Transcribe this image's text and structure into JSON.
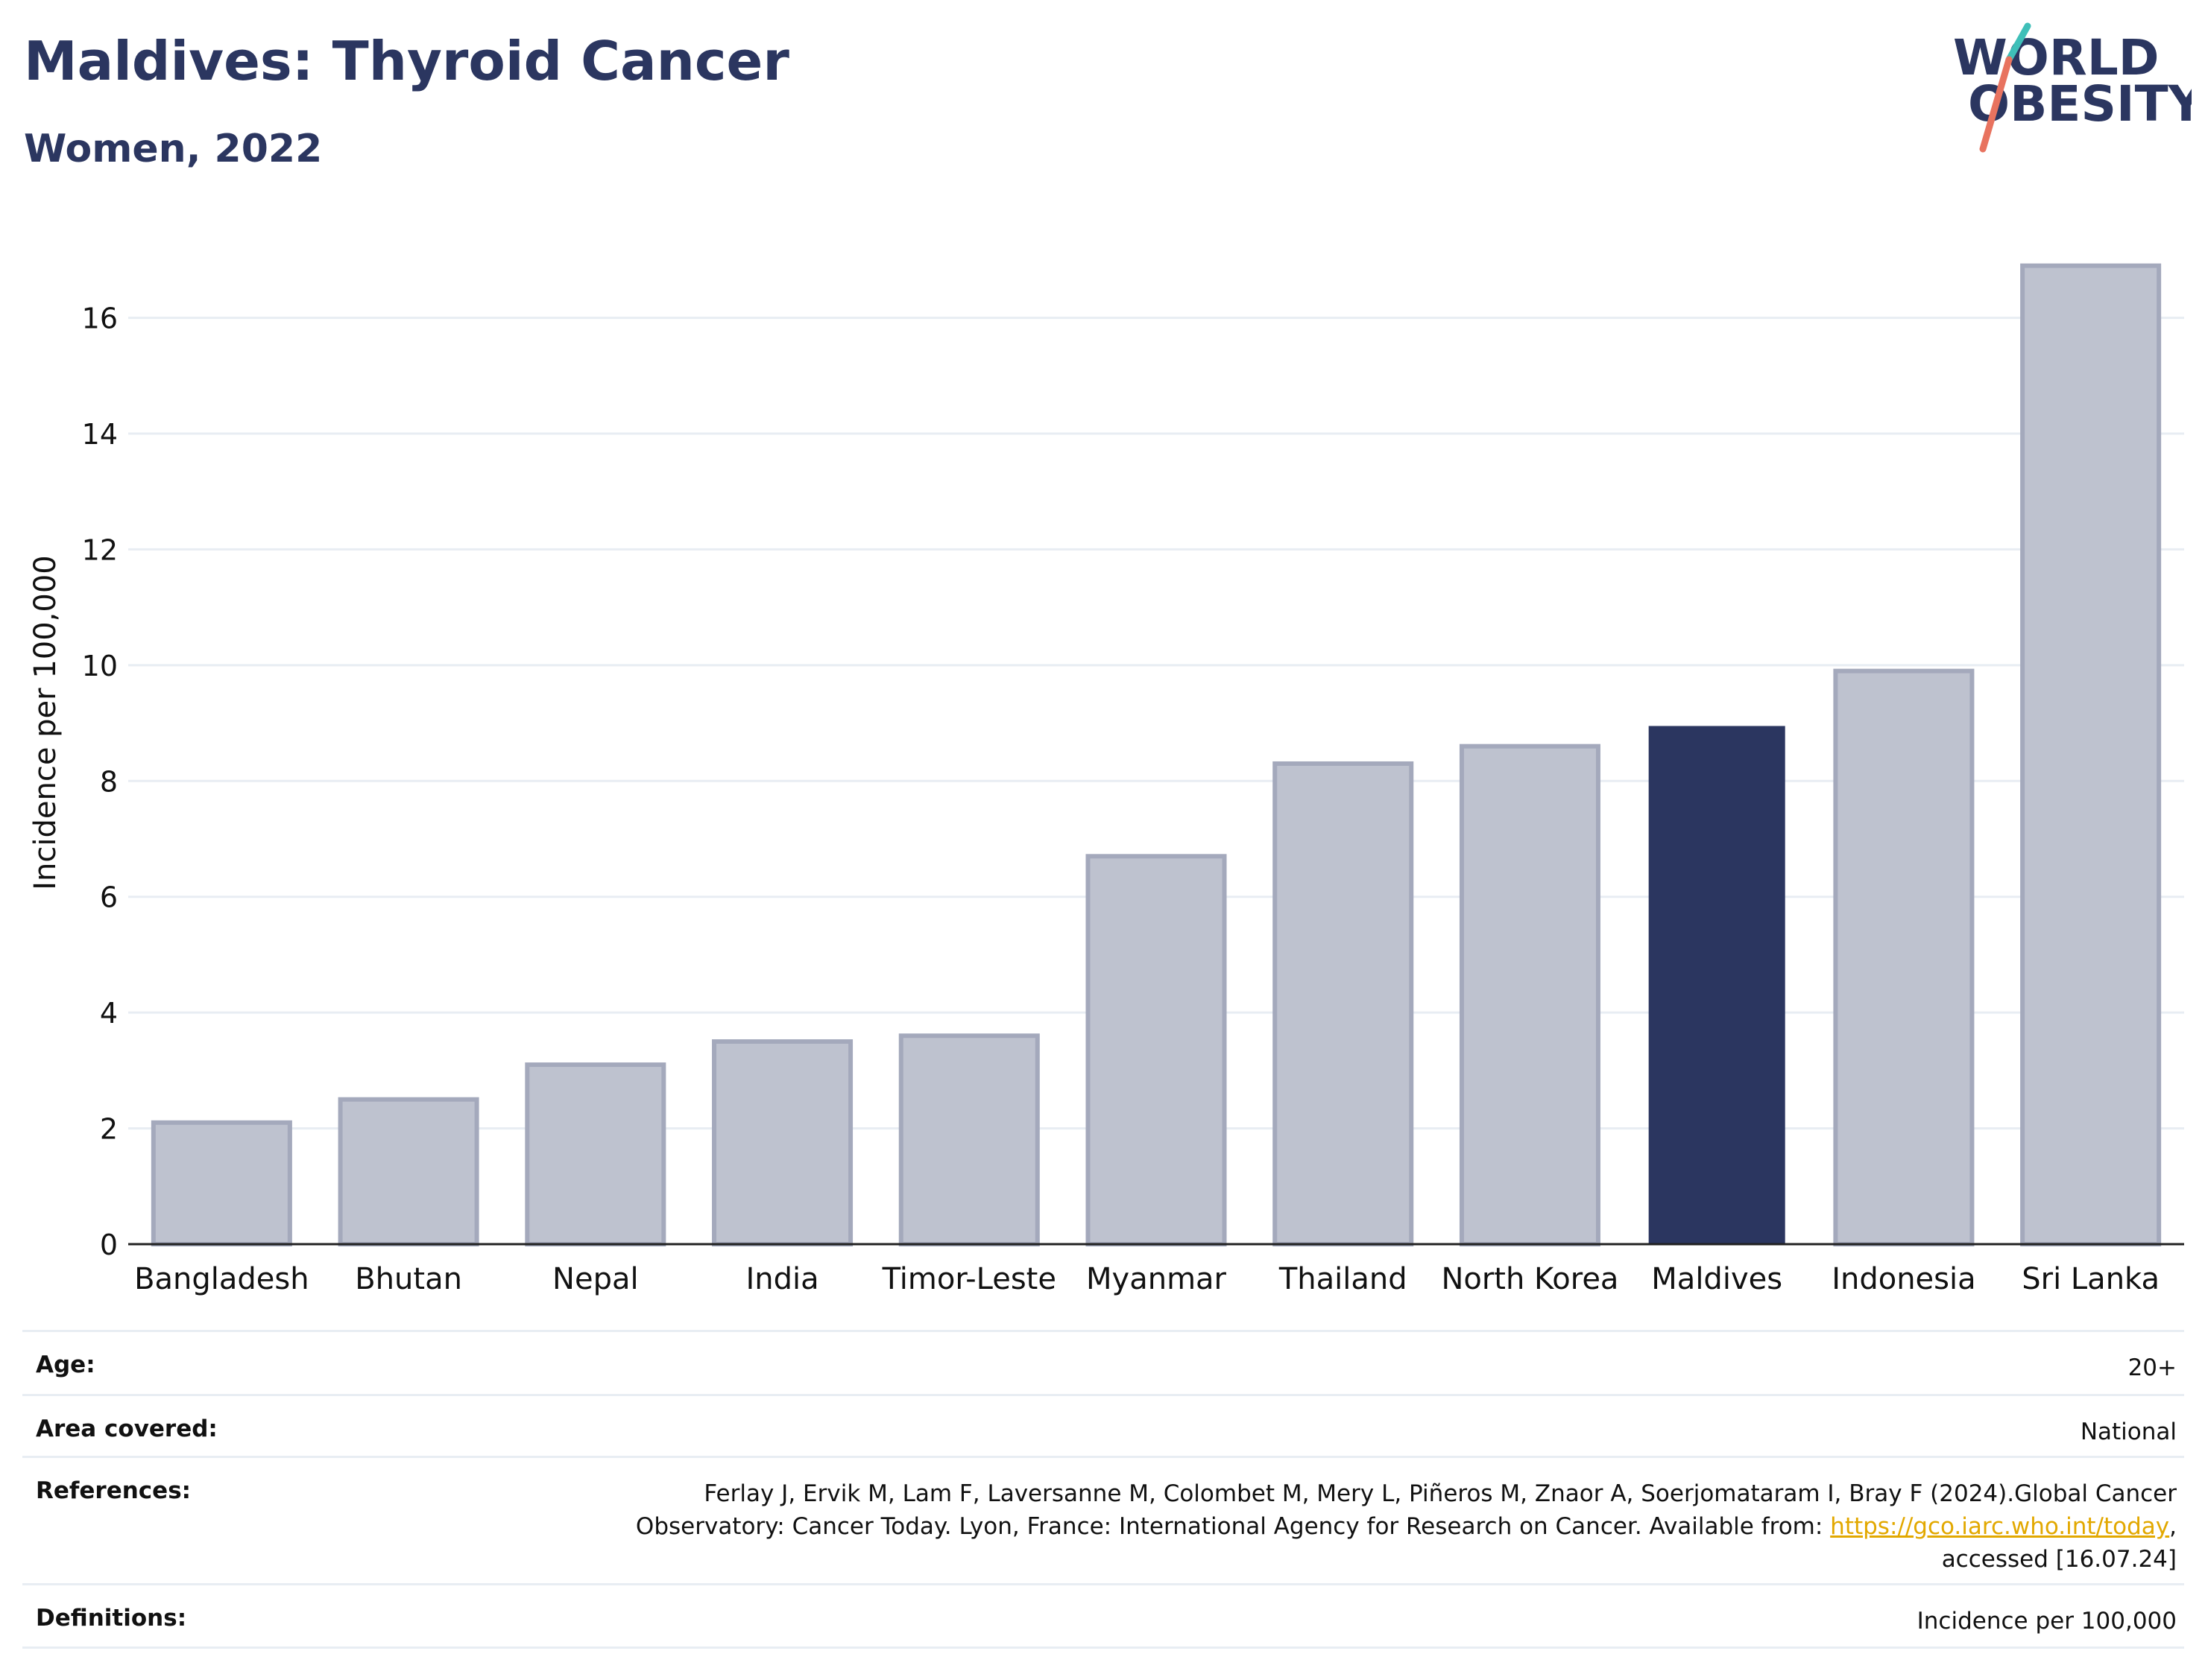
{
  "header": {
    "title": "Maldives: Thyroid Cancer",
    "subtitle": "Women, 2022"
  },
  "logo": {
    "line1": "WORLD",
    "line2": "OBESITY",
    "colors": {
      "text": "#2b3660",
      "slash_top": "#3fbfb8",
      "slash_bottom": "#e8735f"
    }
  },
  "chart_data": {
    "type": "bar",
    "categories": [
      "Bangladesh",
      "Bhutan",
      "Nepal",
      "India",
      "Timor-Leste",
      "Myanmar",
      "Thailand",
      "North Korea",
      "Maldives",
      "Indonesia",
      "Sri Lanka"
    ],
    "values": [
      2.1,
      2.5,
      3.1,
      3.5,
      3.6,
      6.7,
      8.3,
      8.6,
      8.95,
      9.9,
      16.9
    ],
    "highlight": "Maldives",
    "xlabel": "",
    "ylabel": "Incidence per 100,000",
    "ylim": [
      0,
      17.5
    ],
    "yticks": [
      0,
      2,
      4,
      6,
      8,
      10,
      12,
      14,
      16
    ],
    "grid": true,
    "colors": {
      "bar": "#bec2cf",
      "bar_edge": "#a4a9bc",
      "highlight": "#2b3660",
      "grid": "#e8edf3",
      "axis": "#222222"
    }
  },
  "meta": {
    "age": {
      "label": "Age:",
      "value": "20+"
    },
    "area": {
      "label": "Area covered:",
      "value": "National"
    },
    "references": {
      "label": "References:",
      "line1": "Ferlay J, Ervik M, Lam F, Laversanne M, Colombet M, Mery L, Piñeros M, Znaor A, Soerjomataram I, Bray F (2024).Global Cancer",
      "line2_pre": "Observatory: Cancer Today. Lyon, France: International Agency for Research on Cancer. Available from: ",
      "link": "https://gco.iarc.who.int/today",
      "line2_post": ",",
      "line3": "accessed [16.07.24]"
    },
    "definitions": {
      "label": "Definitions:",
      "value": "Incidence per 100,000"
    }
  }
}
